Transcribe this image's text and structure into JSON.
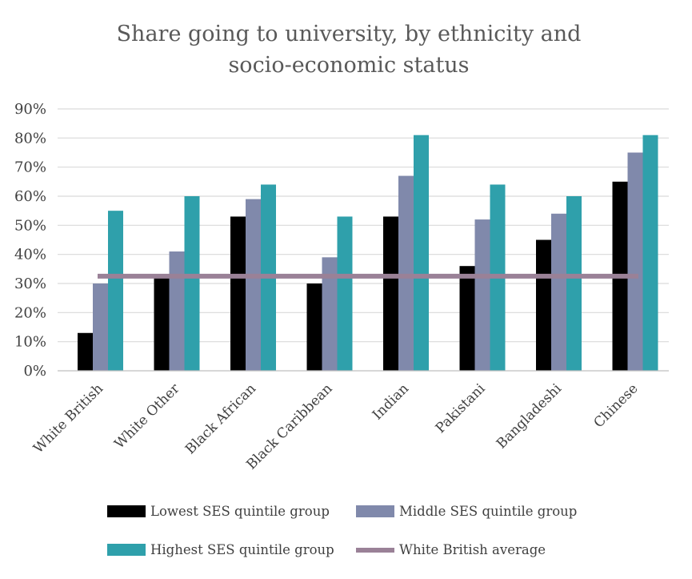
{
  "chart_data": {
    "type": "bar",
    "title": [
      "Share going to university, by ethnicity and",
      "socio-economic status"
    ],
    "xlabel": "",
    "ylabel": "",
    "ylim": [
      0,
      0.9
    ],
    "yticks": [
      0,
      0.1,
      0.2,
      0.3,
      0.4,
      0.5,
      0.6,
      0.7,
      0.8,
      0.9
    ],
    "ytick_labels": [
      "0%",
      "10%",
      "20%",
      "30%",
      "40%",
      "50%",
      "60%",
      "70%",
      "80%",
      "90%"
    ],
    "grid": true,
    "categories": [
      "White British",
      "White Other",
      "Black African",
      "Black Caribbean",
      "Indian",
      "Pakistani",
      "Bangladeshi",
      "Chinese"
    ],
    "series": [
      {
        "name": "Lowest SES quintile group",
        "color": "#000000",
        "values": [
          0.13,
          0.32,
          0.53,
          0.3,
          0.53,
          0.36,
          0.45,
          0.65
        ]
      },
      {
        "name": "Middle SES quintile group",
        "color": "#8089ab",
        "values": [
          0.3,
          0.41,
          0.59,
          0.39,
          0.67,
          0.52,
          0.54,
          0.75
        ]
      },
      {
        "name": "Highest SES quintile group",
        "color": "#2fa0ab",
        "values": [
          0.55,
          0.6,
          0.64,
          0.53,
          0.81,
          0.64,
          0.6,
          0.81
        ]
      }
    ],
    "reference_line": {
      "name": "White British average",
      "color": "#9a8197",
      "value": 0.325
    },
    "legend": {
      "placement": "bottom",
      "items": [
        "Lowest SES quintile group",
        "Middle SES quintile group",
        "Highest SES quintile group",
        "White British average"
      ]
    }
  }
}
